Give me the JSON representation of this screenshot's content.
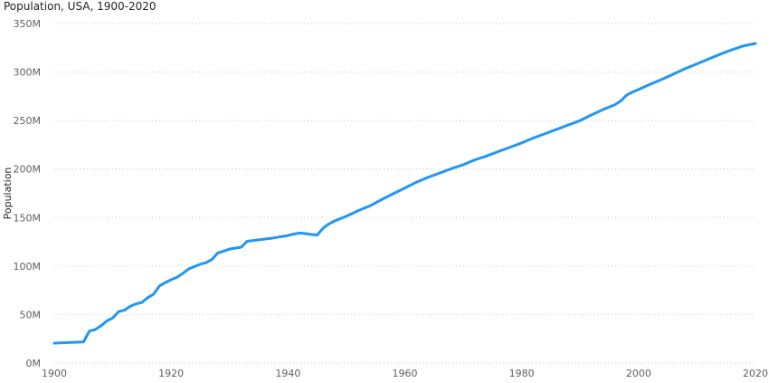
{
  "chart_data": {
    "type": "line",
    "title": "Population, USA, 1900-2020",
    "xlabel": "",
    "ylabel": "Population",
    "xlim": [
      1900,
      2020
    ],
    "ylim": [
      0,
      350000000
    ],
    "x_ticks": [
      1900,
      1920,
      1940,
      1960,
      1980,
      2000,
      2020
    ],
    "x_tick_labels": [
      "1900",
      "1920",
      "1940",
      "1960",
      "1980",
      "2000",
      "2020"
    ],
    "y_ticks": [
      0,
      50000000,
      100000000,
      150000000,
      200000000,
      250000000,
      300000000,
      350000000
    ],
    "y_tick_labels": [
      "0M",
      "50M",
      "100M",
      "150M",
      "200M",
      "250M",
      "300M",
      "350M"
    ],
    "grid": true,
    "series": [
      {
        "color": "#2196f3",
        "points": [
          [
            1900,
            20.5
          ],
          [
            1905,
            21.8
          ],
          [
            1906,
            33.0
          ],
          [
            1907,
            34.5
          ],
          [
            1908,
            38.5
          ],
          [
            1909,
            43.5
          ],
          [
            1910,
            46.5
          ],
          [
            1911,
            53.0
          ],
          [
            1912,
            54.5
          ],
          [
            1913,
            58.5
          ],
          [
            1914,
            61.0
          ],
          [
            1915,
            62.5
          ],
          [
            1916,
            67.5
          ],
          [
            1917,
            71.0
          ],
          [
            1918,
            79.5
          ],
          [
            1919,
            83.0
          ],
          [
            1920,
            86.0
          ],
          [
            1921,
            88.5
          ],
          [
            1922,
            92.5
          ],
          [
            1923,
            97.0
          ],
          [
            1924,
            99.5
          ],
          [
            1925,
            102.0
          ],
          [
            1926,
            103.5
          ],
          [
            1927,
            107.0
          ],
          [
            1928,
            113.5
          ],
          [
            1929,
            115.5
          ],
          [
            1930,
            117.5
          ],
          [
            1931,
            118.5
          ],
          [
            1932,
            119.5
          ],
          [
            1933,
            125.5
          ],
          [
            1935,
            127.0
          ],
          [
            1937,
            128.5
          ],
          [
            1939,
            130.5
          ],
          [
            1940,
            131.5
          ],
          [
            1941,
            133.0
          ],
          [
            1942,
            134.0
          ],
          [
            1943,
            133.5
          ],
          [
            1944,
            132.5
          ],
          [
            1945,
            132.0
          ],
          [
            1946,
            139.0
          ],
          [
            1947,
            143.5
          ],
          [
            1948,
            146.5
          ],
          [
            1950,
            151.5
          ],
          [
            1952,
            157.0
          ],
          [
            1954,
            162.0
          ],
          [
            1956,
            168.5
          ],
          [
            1958,
            174.5
          ],
          [
            1960,
            180.5
          ],
          [
            1962,
            186.5
          ],
          [
            1964,
            191.5
          ],
          [
            1966,
            196.0
          ],
          [
            1968,
            200.5
          ],
          [
            1970,
            204.5
          ],
          [
            1972,
            209.5
          ],
          [
            1974,
            213.5
          ],
          [
            1976,
            218.0
          ],
          [
            1978,
            222.5
          ],
          [
            1980,
            227.0
          ],
          [
            1982,
            232.0
          ],
          [
            1984,
            236.5
          ],
          [
            1986,
            241.0
          ],
          [
            1988,
            245.5
          ],
          [
            1990,
            250.0
          ],
          [
            1992,
            256.0
          ],
          [
            1994,
            261.5
          ],
          [
            1996,
            266.5
          ],
          [
            1997,
            270.5
          ],
          [
            1998,
            276.5
          ],
          [
            1999,
            279.5
          ],
          [
            2000,
            282.0
          ],
          [
            2002,
            287.5
          ],
          [
            2004,
            292.5
          ],
          [
            2006,
            298.0
          ],
          [
            2008,
            303.5
          ],
          [
            2010,
            308.5
          ],
          [
            2012,
            313.5
          ],
          [
            2014,
            318.5
          ],
          [
            2016,
            323.0
          ],
          [
            2018,
            327.0
          ],
          [
            2020,
            329.5
          ]
        ],
        "value_unit": "millions"
      }
    ]
  }
}
